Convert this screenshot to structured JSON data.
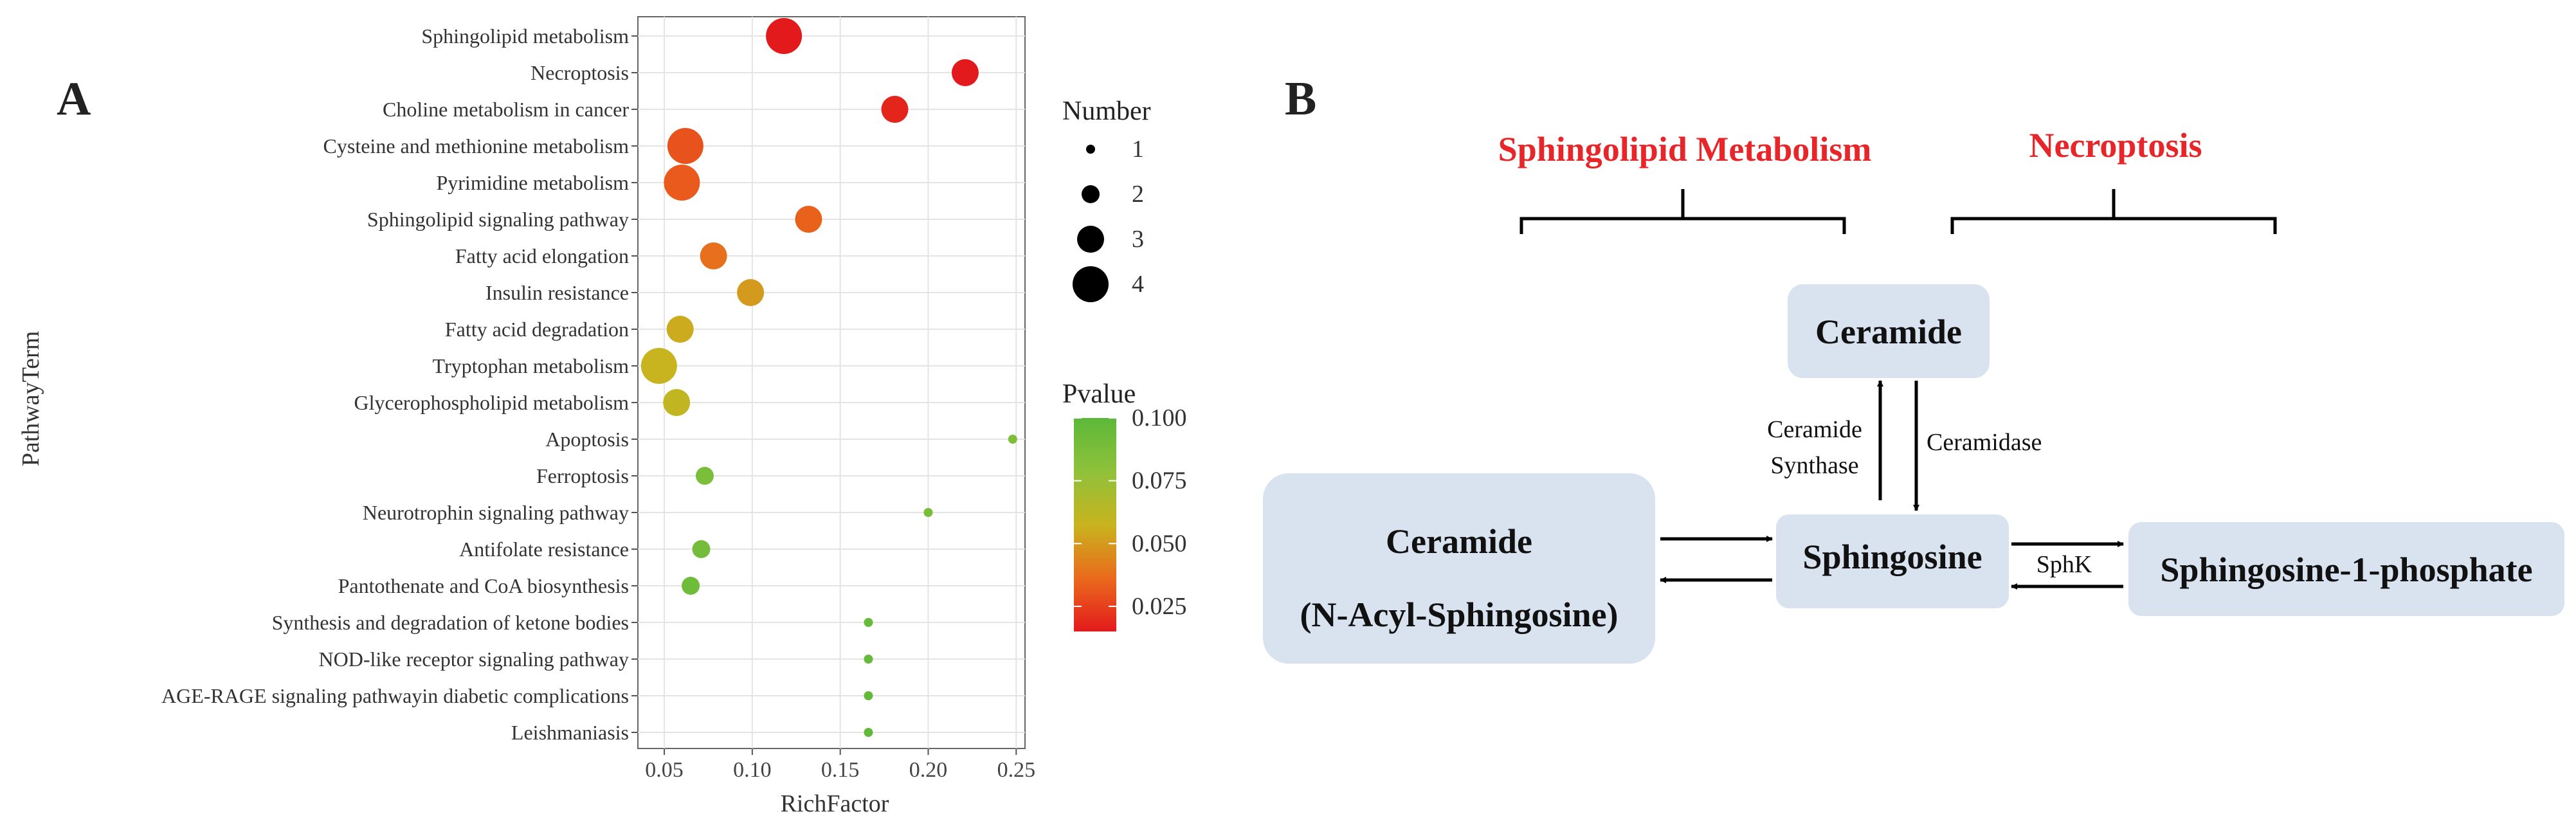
{
  "panel_a_label": "A",
  "panel_b_label": "B",
  "chart_data": {
    "type": "scatter",
    "title": "",
    "xlabel": "RichFactor",
    "ylabel": "PathwayTerm",
    "xlim": [
      0.035,
      0.255
    ],
    "xticks": [
      0.05,
      0.1,
      0.15,
      0.2,
      0.25
    ],
    "xtick_labels": [
      "0.05",
      "0.10",
      "0.15",
      "0.20",
      "0.25"
    ],
    "grid": true,
    "points": [
      {
        "term": "Sphingolipid metabolism",
        "rich_factor": 0.118,
        "count": 4,
        "pvalue": 0.01
      },
      {
        "term": "Necroptosis",
        "rich_factor": 0.221,
        "count": 3,
        "pvalue": 0.012
      },
      {
        "term": "Choline metabolism in cancer",
        "rich_factor": 0.181,
        "count": 3,
        "pvalue": 0.018
      },
      {
        "term": "Cysteine and methionine metabolism",
        "rich_factor": 0.062,
        "count": 4,
        "pvalue": 0.03
      },
      {
        "term": "Pyrimidine metabolism",
        "rich_factor": 0.06,
        "count": 4,
        "pvalue": 0.032
      },
      {
        "term": "Sphingolipid signaling pathway",
        "rich_factor": 0.132,
        "count": 3,
        "pvalue": 0.034
      },
      {
        "term": "Fatty acid elongation",
        "rich_factor": 0.078,
        "count": 3,
        "pvalue": 0.038
      },
      {
        "term": "Insulin resistance",
        "rich_factor": 0.099,
        "count": 3,
        "pvalue": 0.05
      },
      {
        "term": "Fatty acid degradation",
        "rich_factor": 0.059,
        "count": 3,
        "pvalue": 0.055
      },
      {
        "term": "Tryptophan metabolism",
        "rich_factor": 0.047,
        "count": 4,
        "pvalue": 0.058
      },
      {
        "term": "Glycerophospholipid metabolism",
        "rich_factor": 0.057,
        "count": 3,
        "pvalue": 0.06
      },
      {
        "term": "Apoptosis",
        "rich_factor": 0.248,
        "count": 1,
        "pvalue": 0.085
      },
      {
        "term": "Ferroptosis",
        "rich_factor": 0.073,
        "count": 2,
        "pvalue": 0.087
      },
      {
        "term": "Neurotrophin signaling pathway",
        "rich_factor": 0.2,
        "count": 1,
        "pvalue": 0.089
      },
      {
        "term": "Antifolate resistance",
        "rich_factor": 0.071,
        "count": 2,
        "pvalue": 0.09
      },
      {
        "term": "Pantothenate and CoA biosynthesis",
        "rich_factor": 0.065,
        "count": 2,
        "pvalue": 0.092
      },
      {
        "term": "Synthesis and degradation of ketone bodies",
        "rich_factor": 0.166,
        "count": 1,
        "pvalue": 0.095
      },
      {
        "term": "NOD-like receptor signaling pathway",
        "rich_factor": 0.166,
        "count": 1,
        "pvalue": 0.096
      },
      {
        "term": "AGE-RAGE signaling pathwayin diabetic complications",
        "rich_factor": 0.166,
        "count": 1,
        "pvalue": 0.097
      },
      {
        "term": "Leishmaniasis",
        "rich_factor": 0.166,
        "count": 1,
        "pvalue": 0.098
      }
    ],
    "size_legend": {
      "title": "Number",
      "values": [
        1,
        2,
        3,
        4
      ],
      "labels": [
        "1",
        "2",
        "3",
        "4"
      ]
    },
    "color_legend": {
      "title": "Pvalue",
      "range": [
        0.015,
        0.1
      ],
      "ticks": [
        0.1,
        0.075,
        0.05,
        0.025
      ],
      "tick_labels": [
        "0.100",
        "0.075",
        "0.050",
        "0.025"
      ],
      "gradient": [
        "#e31a1c",
        "#ea6a1c",
        "#c8b41e",
        "#8fc13a",
        "#5cb83a"
      ]
    }
  },
  "diagram": {
    "title_left": "Sphingolipid Metabolism",
    "title_right": "Necroptosis",
    "title_color": "#e8262a",
    "box_color": "#d9e2ef",
    "nodes": {
      "ceramide_top": "Ceramide",
      "ceramide_left_line1": "Ceramide",
      "ceramide_left_line2": "(N-Acyl-Sphingosine)",
      "sphingosine": "Sphingosine",
      "s1p": "Sphingosine-1-phosphate"
    },
    "edges": {
      "ceramide_synthase_line1": "Ceramide",
      "ceramide_synthase_line2": "Synthase",
      "ceramidase": "Ceramidase",
      "sphk": "SphK"
    }
  }
}
